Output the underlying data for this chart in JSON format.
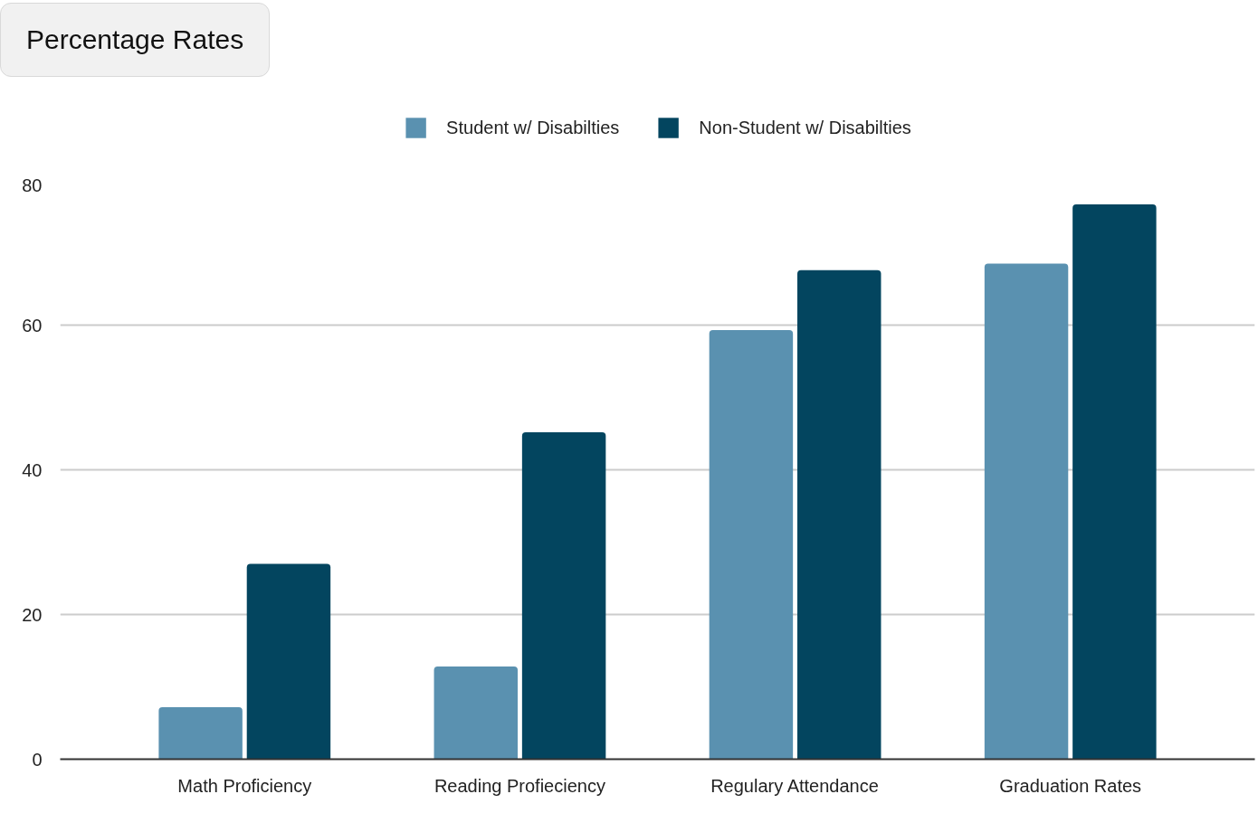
{
  "chart_data": {
    "type": "bar",
    "title": "Percentage Rates",
    "categories": [
      "Math Proficiency",
      "Reading Profieciency",
      "Regulary Attendance",
      "Graduation Rates"
    ],
    "series": [
      {
        "name": "Student w/ Disabilties",
        "color": "#5a91b0",
        "values": [
          7.2,
          12.8,
          59.3,
          68.5
        ]
      },
      {
        "name": "Non-Student w/ Disabilties",
        "color": "#03455f",
        "values": [
          27.0,
          45.2,
          67.6,
          76.7
        ]
      }
    ],
    "ylim": [
      0,
      80
    ],
    "yticks": [
      0,
      20,
      40,
      60,
      80
    ],
    "grid": "y",
    "legend": "top"
  }
}
